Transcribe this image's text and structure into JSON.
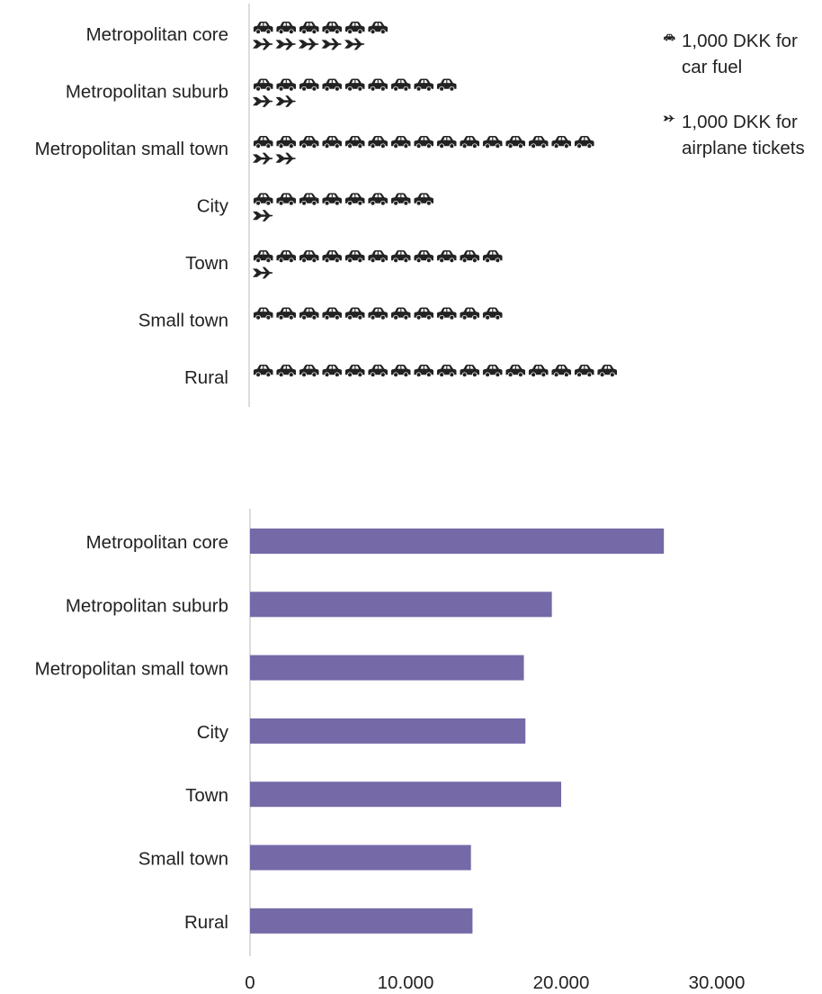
{
  "chart_data": [
    {
      "type": "bar",
      "orientation": "horizontal",
      "style": "pictograph",
      "categories": [
        "Metropolitan core",
        "Metropolitan suburb",
        "Metropolitan small town",
        "City",
        "Town",
        "Small town",
        "Rural"
      ],
      "series": [
        {
          "name": "1,000 DKK for car fuel",
          "icon": "car-icon",
          "color": "#222222",
          "values": [
            6.3,
            9.0,
            15.5,
            8.4,
            11.7,
            11.8,
            16.6
          ]
        },
        {
          "name": "1,000 DKK for airplane tickets",
          "icon": "airplane-icon",
          "color": "#222222",
          "values": [
            5.7,
            2.3,
            2.8,
            1.7,
            1.6,
            0.8,
            0.8
          ]
        }
      ],
      "legend": {
        "position": "top-right",
        "items": [
          {
            "line1": "1,000 DKK for",
            "line2": "car fuel"
          },
          {
            "line1": "1,000 DKK for",
            "line2": "airplane tickets"
          }
        ]
      },
      "grid": false
    },
    {
      "type": "bar",
      "orientation": "horizontal",
      "categories": [
        "Metropolitan core",
        "Metropolitan suburb",
        "Metropolitan small town",
        "City",
        "Town",
        "Small town",
        "Rural"
      ],
      "values": [
        26600,
        19400,
        17600,
        17700,
        20000,
        14200,
        14300
      ],
      "color": "#7569a7",
      "xlim": [
        0,
        30000
      ],
      "xticks": [
        0,
        10000,
        20000,
        30000
      ],
      "xtick_labels": [
        "0",
        "10.000",
        "20.000",
        "30.000"
      ],
      "grid": false
    }
  ]
}
